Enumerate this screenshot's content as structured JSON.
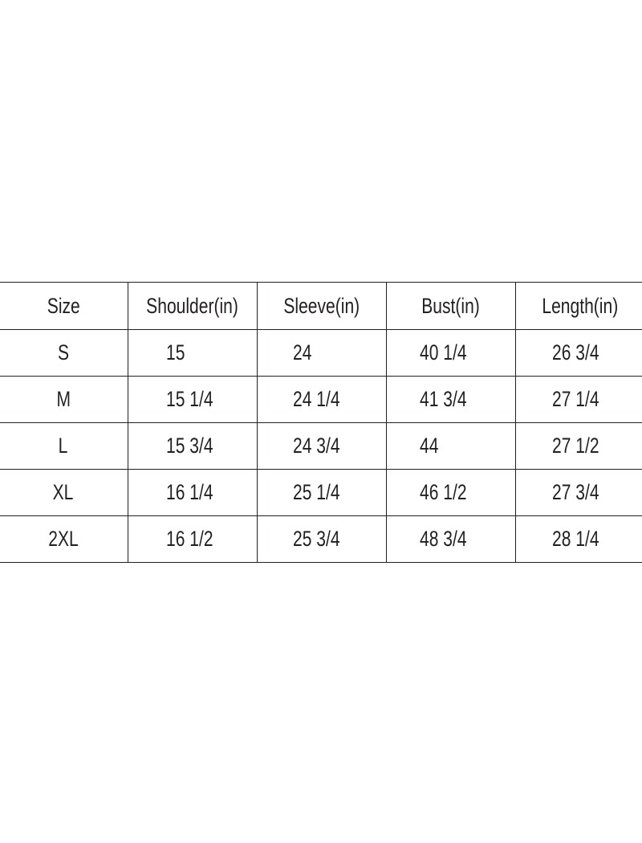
{
  "headers": [
    "Size",
    "Shoulder(in)",
    "Sleeve(in)",
    "Bust(in)",
    "Length(in)"
  ],
  "rows": [
    [
      "S",
      "15",
      "24",
      "40 1/4",
      "26 3/4"
    ],
    [
      "M",
      "15 1/4",
      "24 1/4",
      "41 3/4",
      "27 1/4"
    ],
    [
      "L",
      "15 3/4",
      "24 3/4",
      "44",
      "27 1/2"
    ],
    [
      "XL",
      "16 1/4",
      "25 1/4",
      "46 1/2",
      "27 3/4"
    ],
    [
      "2XL",
      "16 1/2",
      "25 3/4",
      "48 3/4",
      "28 1/4"
    ]
  ]
}
